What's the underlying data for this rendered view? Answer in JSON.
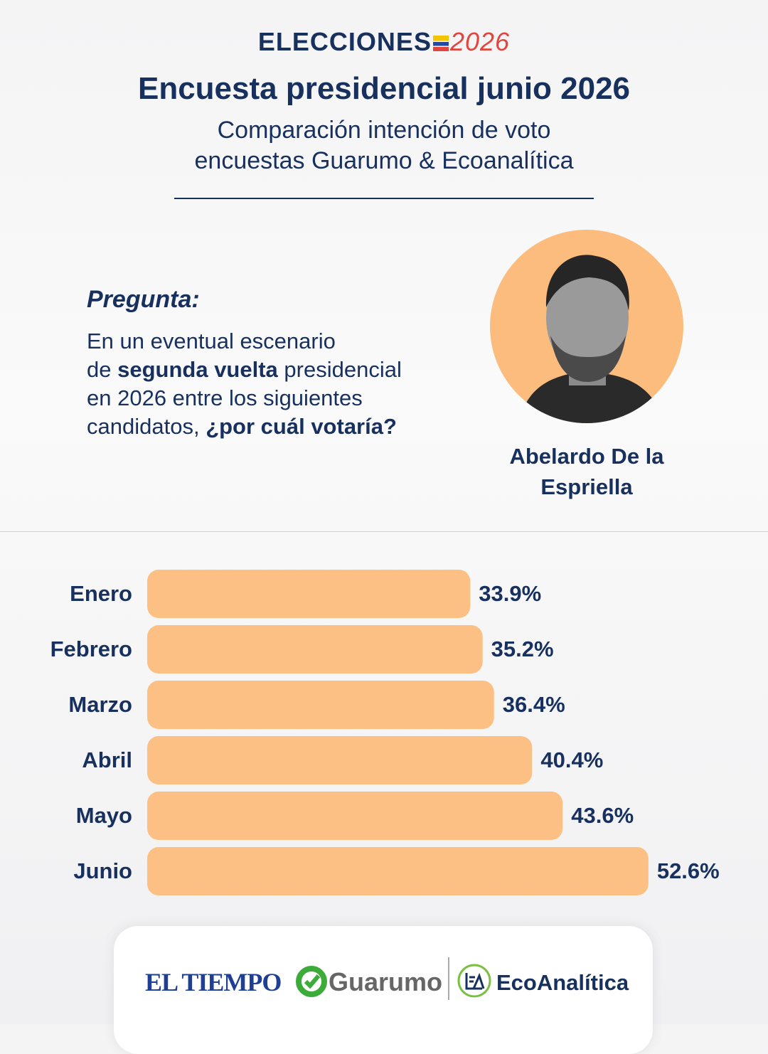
{
  "header": {
    "brand": "ELECCIONES",
    "year": "2026",
    "title": "Encuesta presidencial junio 2026",
    "subtitle": [
      "Comparación intención de voto",
      "encuestas Guarumo & Ecoanalítica"
    ]
  },
  "question": {
    "label": "Pregunta:",
    "segments": [
      "En un eventual escenario",
      "de",
      "segunda vuelta",
      "presidencial",
      "en 2026 entre los siguientes",
      "candidatos,",
      "¿por cuál votaría?"
    ]
  },
  "candidate": {
    "name": "Abelardo De la Espriella"
  },
  "chart_data": {
    "type": "bar",
    "orientation": "horizontal",
    "color": "#fdc084",
    "categories": [
      "Enero",
      "Febrero",
      "Marzo",
      "Abril",
      "Mayo",
      "Junio"
    ],
    "values": [
      33.9,
      35.2,
      36.4,
      40.4,
      43.6,
      52.6
    ],
    "value_labels": [
      "33.9%",
      "35.2%",
      "36.4%",
      "40.4%",
      "43.6%",
      "52.6%"
    ]
  },
  "footer": {
    "logos": [
      "EL TIEMPO",
      "Guarumo",
      "EcoAnalítica"
    ]
  }
}
